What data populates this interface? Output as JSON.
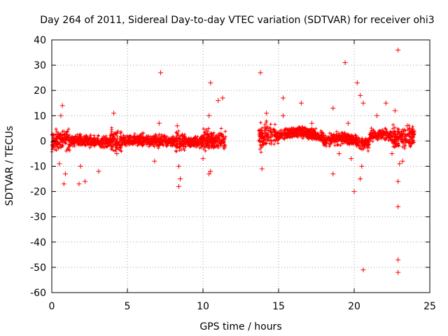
{
  "chart_data": {
    "type": "scatter",
    "title": "Day 264 of 2011, Sidereal Day-to-day VTEC variation (SDTVAR) for receiver ohi3",
    "xlabel": "GPS time / hours",
    "ylabel": "SDTVAR / TECUs",
    "xlim": [
      0,
      25
    ],
    "ylim": [
      -60,
      40
    ],
    "xticks": [
      0,
      5,
      10,
      15,
      20,
      25
    ],
    "yticks": [
      -60,
      -50,
      -40,
      -30,
      -20,
      -10,
      0,
      10,
      20,
      30,
      40
    ],
    "grid": true,
    "marker": "+",
    "series_color": "#ff0000",
    "outliers": [
      {
        "x": 0.7,
        "y": 14
      },
      {
        "x": 0.6,
        "y": 10
      },
      {
        "x": 0.8,
        "y": -17
      },
      {
        "x": 0.9,
        "y": -13
      },
      {
        "x": 0.5,
        "y": -9
      },
      {
        "x": 1.8,
        "y": -17
      },
      {
        "x": 2.2,
        "y": -16
      },
      {
        "x": 1.9,
        "y": -10
      },
      {
        "x": 3.1,
        "y": -12
      },
      {
        "x": 4.1,
        "y": 11
      },
      {
        "x": 4.3,
        "y": -5
      },
      {
        "x": 7.2,
        "y": 27
      },
      {
        "x": 7.1,
        "y": 7
      },
      {
        "x": 6.8,
        "y": -8
      },
      {
        "x": 8.4,
        "y": -18
      },
      {
        "x": 8.5,
        "y": -15
      },
      {
        "x": 8.4,
        "y": -10
      },
      {
        "x": 8.3,
        "y": 6
      },
      {
        "x": 10.5,
        "y": 23
      },
      {
        "x": 10.5,
        "y": -12
      },
      {
        "x": 10.4,
        "y": -13
      },
      {
        "x": 10.4,
        "y": 10
      },
      {
        "x": 11.0,
        "y": 16
      },
      {
        "x": 11.3,
        "y": 17
      },
      {
        "x": 10.0,
        "y": -7
      },
      {
        "x": 13.8,
        "y": 27
      },
      {
        "x": 13.9,
        "y": -11
      },
      {
        "x": 14.2,
        "y": 11
      },
      {
        "x": 15.3,
        "y": 17
      },
      {
        "x": 15.3,
        "y": 10
      },
      {
        "x": 16.5,
        "y": 15
      },
      {
        "x": 17.2,
        "y": 7
      },
      {
        "x": 18.6,
        "y": 13
      },
      {
        "x": 18.6,
        "y": -13
      },
      {
        "x": 19.0,
        "y": -5
      },
      {
        "x": 19.4,
        "y": 31
      },
      {
        "x": 20.0,
        "y": -20
      },
      {
        "x": 20.2,
        "y": 23
      },
      {
        "x": 20.4,
        "y": 18
      },
      {
        "x": 20.4,
        "y": -15
      },
      {
        "x": 20.6,
        "y": -51
      },
      {
        "x": 20.6,
        "y": 15
      },
      {
        "x": 20.5,
        "y": -10
      },
      {
        "x": 19.6,
        "y": 7
      },
      {
        "x": 19.8,
        "y": -7
      },
      {
        "x": 21.5,
        "y": 10
      },
      {
        "x": 22.1,
        "y": 15
      },
      {
        "x": 22.5,
        "y": -5
      },
      {
        "x": 22.7,
        "y": 12
      },
      {
        "x": 22.9,
        "y": 36
      },
      {
        "x": 22.9,
        "y": -16
      },
      {
        "x": 22.9,
        "y": -26
      },
      {
        "x": 22.9,
        "y": -47
      },
      {
        "x": 22.9,
        "y": -52
      },
      {
        "x": 23.2,
        "y": -8
      },
      {
        "x": 23.5,
        "y": 6
      },
      {
        "x": 23.0,
        "y": -9
      }
    ],
    "dense_segments": [
      {
        "x_start": 0.0,
        "x_end": 11.5,
        "description": "continuous band around 0, mostly within -5 to +5"
      },
      {
        "x_start": 13.7,
        "x_end": 24.0,
        "description": "continuous band around 0, mostly within -5 to +8"
      }
    ]
  }
}
